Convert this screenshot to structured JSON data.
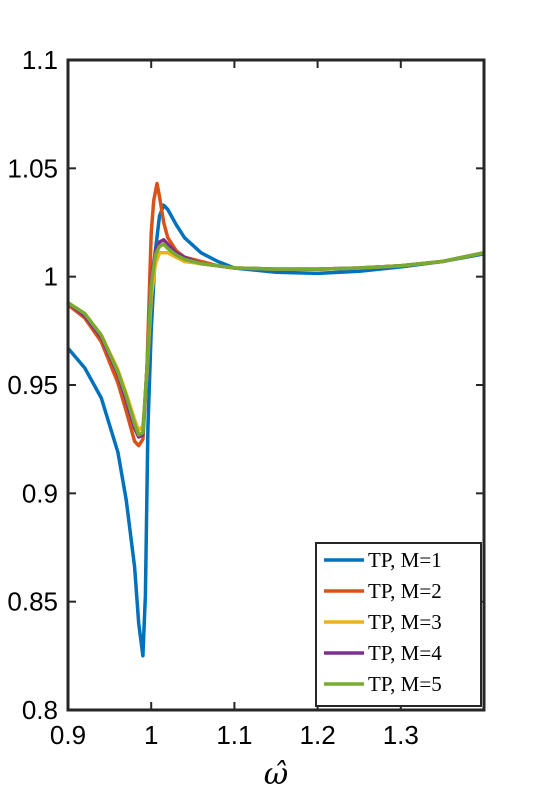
{
  "chart_data": {
    "type": "line",
    "xlabel": "ω̂",
    "ylabel": "",
    "xlim": [
      0.9,
      1.4
    ],
    "ylim": [
      0.8,
      1.1
    ],
    "xticks": [
      0.9,
      1,
      1.1,
      1.2,
      1.3
    ],
    "xtick_labels": [
      "0.9",
      "1",
      "1.1",
      "1.2",
      "1.3"
    ],
    "yticks": [
      0.8,
      0.85,
      0.9,
      0.95,
      1,
      1.05,
      1.1
    ],
    "ytick_labels": [
      "0.8",
      "0.85",
      "0.9",
      "0.95",
      "1",
      "1.05",
      "1.1"
    ],
    "grid": false,
    "legend_position": "bottom-right",
    "series": [
      {
        "name": "TP, M=1",
        "color": "#0072BD",
        "x": [
          0.9,
          0.92,
          0.94,
          0.96,
          0.97,
          0.98,
          0.985,
          0.99,
          0.993,
          0.996,
          1.0,
          1.005,
          1.01,
          1.015,
          1.02,
          1.03,
          1.04,
          1.06,
          1.08,
          1.1,
          1.15,
          1.2,
          1.25,
          1.3,
          1.35,
          1.4
        ],
        "y": [
          0.967,
          0.958,
          0.944,
          0.919,
          0.897,
          0.866,
          0.84,
          0.825,
          0.853,
          0.93,
          0.975,
          1.012,
          1.028,
          1.033,
          1.031,
          1.024,
          1.018,
          1.011,
          1.007,
          1.004,
          1.002,
          1.0015,
          1.0025,
          1.0045,
          1.007,
          1.0105
        ]
      },
      {
        "name": "TP, M=2",
        "color": "#D95319",
        "x": [
          0.9,
          0.92,
          0.94,
          0.96,
          0.97,
          0.98,
          0.985,
          0.99,
          0.995,
          1.0,
          1.003,
          1.007,
          1.01,
          1.015,
          1.02,
          1.03,
          1.04,
          1.06,
          1.08,
          1.1,
          1.15,
          1.2,
          1.25,
          1.3,
          1.35,
          1.4
        ],
        "y": [
          0.987,
          0.981,
          0.97,
          0.951,
          0.938,
          0.924,
          0.922,
          0.925,
          0.958,
          1.02,
          1.035,
          1.043,
          1.037,
          1.025,
          1.018,
          1.012,
          1.009,
          1.007,
          1.005,
          1.004,
          1.0035,
          1.0035,
          1.004,
          1.005,
          1.007,
          1.011
        ]
      },
      {
        "name": "TP, M=3",
        "color": "#EDB120",
        "x": [
          0.9,
          0.92,
          0.94,
          0.96,
          0.97,
          0.98,
          0.985,
          0.99,
          0.995,
          1.0,
          1.005,
          1.01,
          1.02,
          1.03,
          1.04,
          1.06,
          1.08,
          1.1,
          1.15,
          1.2,
          1.25,
          1.3,
          1.35,
          1.4
        ],
        "y": [
          0.988,
          0.983,
          0.973,
          0.957,
          0.946,
          0.934,
          0.929,
          0.931,
          0.955,
          0.99,
          1.006,
          1.011,
          1.011,
          1.009,
          1.007,
          1.006,
          1.005,
          1.004,
          1.0035,
          1.0035,
          1.004,
          1.005,
          1.007,
          1.011
        ]
      },
      {
        "name": "TP, M=4",
        "color": "#7E2F8E",
        "x": [
          0.9,
          0.92,
          0.94,
          0.96,
          0.97,
          0.98,
          0.985,
          0.99,
          0.995,
          1.0,
          1.005,
          1.01,
          1.015,
          1.02,
          1.03,
          1.04,
          1.06,
          1.08,
          1.1,
          1.15,
          1.2,
          1.25,
          1.3,
          1.35,
          1.4
        ],
        "y": [
          0.988,
          0.982,
          0.972,
          0.955,
          0.943,
          0.93,
          0.926,
          0.927,
          0.958,
          0.998,
          1.012,
          1.016,
          1.017,
          1.015,
          1.011,
          1.009,
          1.006,
          1.005,
          1.004,
          1.0035,
          1.0035,
          1.004,
          1.005,
          1.007,
          1.011
        ]
      },
      {
        "name": "TP, M=5",
        "color": "#77AC30",
        "x": [
          0.9,
          0.92,
          0.94,
          0.96,
          0.97,
          0.98,
          0.985,
          0.99,
          0.995,
          1.0,
          1.005,
          1.01,
          1.015,
          1.02,
          1.03,
          1.04,
          1.06,
          1.08,
          1.1,
          1.15,
          1.2,
          1.25,
          1.3,
          1.35,
          1.4
        ],
        "y": [
          0.988,
          0.983,
          0.973,
          0.956,
          0.945,
          0.932,
          0.927,
          0.928,
          0.958,
          0.996,
          1.01,
          1.014,
          1.015,
          1.013,
          1.01,
          1.008,
          1.006,
          1.005,
          1.004,
          1.0035,
          1.0035,
          1.004,
          1.005,
          1.007,
          1.011
        ]
      }
    ]
  }
}
